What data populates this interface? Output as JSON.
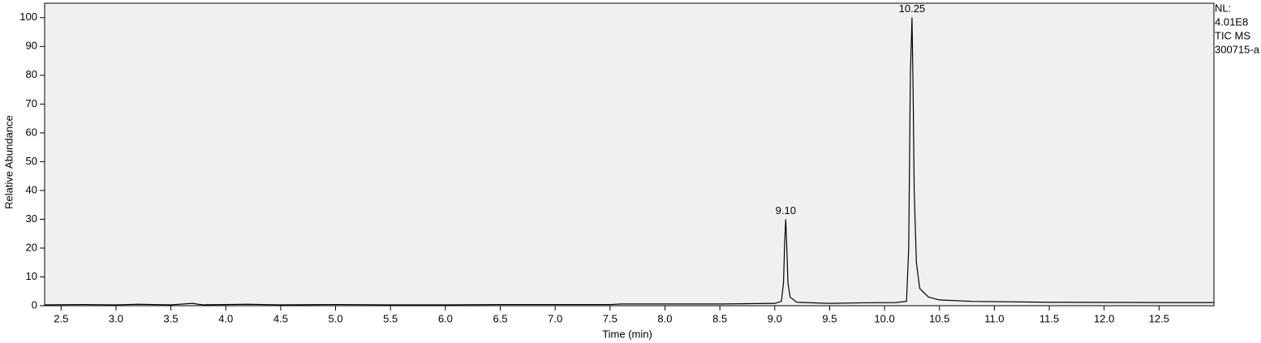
{
  "chart_data": {
    "type": "line",
    "x_label": "Time (min)",
    "y_label": "Relative Abundance",
    "side_info": [
      "NL:",
      "4.01E8",
      "TIC  MS",
      "300715-a"
    ],
    "xlim": [
      2.35,
      13.0
    ],
    "ylim": [
      0,
      105
    ],
    "xticks": [
      {
        "value": 2.5,
        "label": "2.5"
      },
      {
        "value": 3,
        "label": "3.0"
      },
      {
        "value": 3.5,
        "label": "3.5"
      },
      {
        "value": 4,
        "label": "4.0"
      },
      {
        "value": 4.5,
        "label": "4.5"
      },
      {
        "value": 5,
        "label": "5.0"
      },
      {
        "value": 5.5,
        "label": "5.5"
      },
      {
        "value": 6,
        "label": "6.0"
      },
      {
        "value": 6.5,
        "label": "6.5"
      },
      {
        "value": 7,
        "label": "7.0"
      },
      {
        "value": 7.5,
        "label": "7.5"
      },
      {
        "value": 8,
        "label": "8.0"
      },
      {
        "value": 8.5,
        "label": "8.5"
      },
      {
        "value": 9,
        "label": "9.0"
      },
      {
        "value": 9.5,
        "label": "9.5"
      },
      {
        "value": 10,
        "label": "10.0"
      },
      {
        "value": 10.5,
        "label": "10.5"
      },
      {
        "value": 11,
        "label": "11.0"
      },
      {
        "value": 11.5,
        "label": "11.5"
      },
      {
        "value": 12,
        "label": "12.0"
      },
      {
        "value": 12.5,
        "label": "12.5"
      }
    ],
    "yticks": [
      0,
      10,
      20,
      30,
      40,
      50,
      60,
      70,
      80,
      90,
      100
    ],
    "series": [
      {
        "color": "#000000",
        "x": [
          2.35,
          2.7,
          3.0,
          3.2,
          3.5,
          3.7,
          3.75,
          3.8,
          4.2,
          4.5,
          5.0,
          5.5,
          6.0,
          6.5,
          7.0,
          7.5,
          7.6,
          8.0,
          8.5,
          9.0,
          9.06,
          9.08,
          9.09,
          9.1,
          9.11,
          9.12,
          9.14,
          9.2,
          9.5,
          9.8,
          10.1,
          10.2,
          10.22,
          10.235,
          10.25,
          10.26,
          10.27,
          10.29,
          10.32,
          10.4,
          10.5,
          10.8,
          11.5,
          12.5,
          13.0
        ],
        "values": [
          0.3,
          0.4,
          0.3,
          0.5,
          0.3,
          0.8,
          0.5,
          0.3,
          0.5,
          0.3,
          0.4,
          0.3,
          0.3,
          0.4,
          0.4,
          0.4,
          0.6,
          0.6,
          0.6,
          0.8,
          1.5,
          8,
          22,
          30,
          20,
          8,
          3,
          1.2,
          0.8,
          1.0,
          1.1,
          1.5,
          20,
          80,
          100,
          75,
          40,
          15,
          6,
          3,
          2,
          1.5,
          1.2,
          1.1,
          1.1
        ]
      }
    ],
    "annotations": [
      {
        "text": "9.10",
        "x": 9.1,
        "y": 30
      },
      {
        "text": "10.25",
        "x": 10.25,
        "y": 100
      }
    ]
  }
}
